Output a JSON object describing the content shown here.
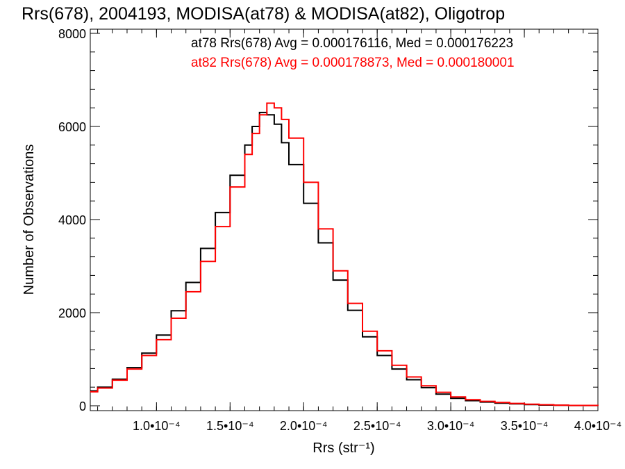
{
  "chart_data": {
    "type": "line",
    "title": "Rrs(678), 2004193, MODISA(at78) & MODISA(at82), Oligotrop",
    "xlabel": "Rrs (str⁻¹)",
    "ylabel": "Number of Observations",
    "xlim": [
      5.5e-05,
      0.0004
    ],
    "ylim": [
      0,
      8000
    ],
    "x_ticks": [
      {
        "value": 0.0001,
        "label": "1.0•10⁻⁴"
      },
      {
        "value": 0.00015,
        "label": "1.5•10⁻⁴"
      },
      {
        "value": 0.0002,
        "label": "2.0•10⁻⁴"
      },
      {
        "value": 0.00025,
        "label": "2.5•10⁻⁴"
      },
      {
        "value": 0.0003,
        "label": "3.0•10⁻⁴"
      },
      {
        "value": 0.00035,
        "label": "3.5•10⁻⁴"
      },
      {
        "value": 0.0004,
        "label": "4.0•10⁻⁴"
      }
    ],
    "y_ticks": [
      {
        "value": 0,
        "label": "0"
      },
      {
        "value": 2000,
        "label": "2000"
      },
      {
        "value": 4000,
        "label": "4000"
      },
      {
        "value": 6000,
        "label": "6000"
      },
      {
        "value": 8000,
        "label": "8000"
      }
    ],
    "grid": false,
    "legend_position": "top-right",
    "x": [
      5.5e-05,
      6e-05,
      7e-05,
      8e-05,
      9e-05,
      0.0001,
      0.00011,
      0.00012,
      0.00013,
      0.00014,
      0.00015,
      0.00016,
      0.000165,
      0.00017,
      0.000175,
      0.00018,
      0.000185,
      0.00019,
      0.0002,
      0.00021,
      0.00022,
      0.00023,
      0.00024,
      0.00025,
      0.00026,
      0.00027,
      0.00028,
      0.00029,
      0.0003,
      0.00031,
      0.00032,
      0.00033,
      0.00034,
      0.00035,
      0.00036,
      0.00037,
      0.00038,
      0.0004
    ],
    "series": [
      {
        "name": "at78",
        "color": "#000000",
        "values": [
          320,
          400,
          570,
          820,
          1130,
          1520,
          2040,
          2650,
          3380,
          4150,
          4950,
          5600,
          6000,
          6300,
          6250,
          6050,
          5650,
          5180,
          4350,
          3500,
          2700,
          2050,
          1480,
          1080,
          790,
          560,
          390,
          250,
          160,
          110,
          80,
          55,
          40,
          25,
          15,
          10,
          6,
          0
        ]
      },
      {
        "name": "at82",
        "color": "#ff0000",
        "values": [
          300,
          380,
          550,
          790,
          1080,
          1420,
          1880,
          2450,
          3100,
          3850,
          4700,
          5400,
          5850,
          6250,
          6500,
          6400,
          6150,
          5750,
          4800,
          3800,
          2900,
          2200,
          1600,
          1180,
          870,
          620,
          430,
          290,
          190,
          130,
          95,
          70,
          50,
          35,
          22,
          14,
          8,
          0
        ]
      }
    ],
    "annotations": [
      {
        "text": "at78 Rrs(678) Avg = 0.000176116, Med = 0.000176223",
        "color": "#000000"
      },
      {
        "text": "at82 Rrs(678) Avg = 0.000178873, Med = 0.000180001",
        "color": "#ff0000"
      }
    ]
  }
}
